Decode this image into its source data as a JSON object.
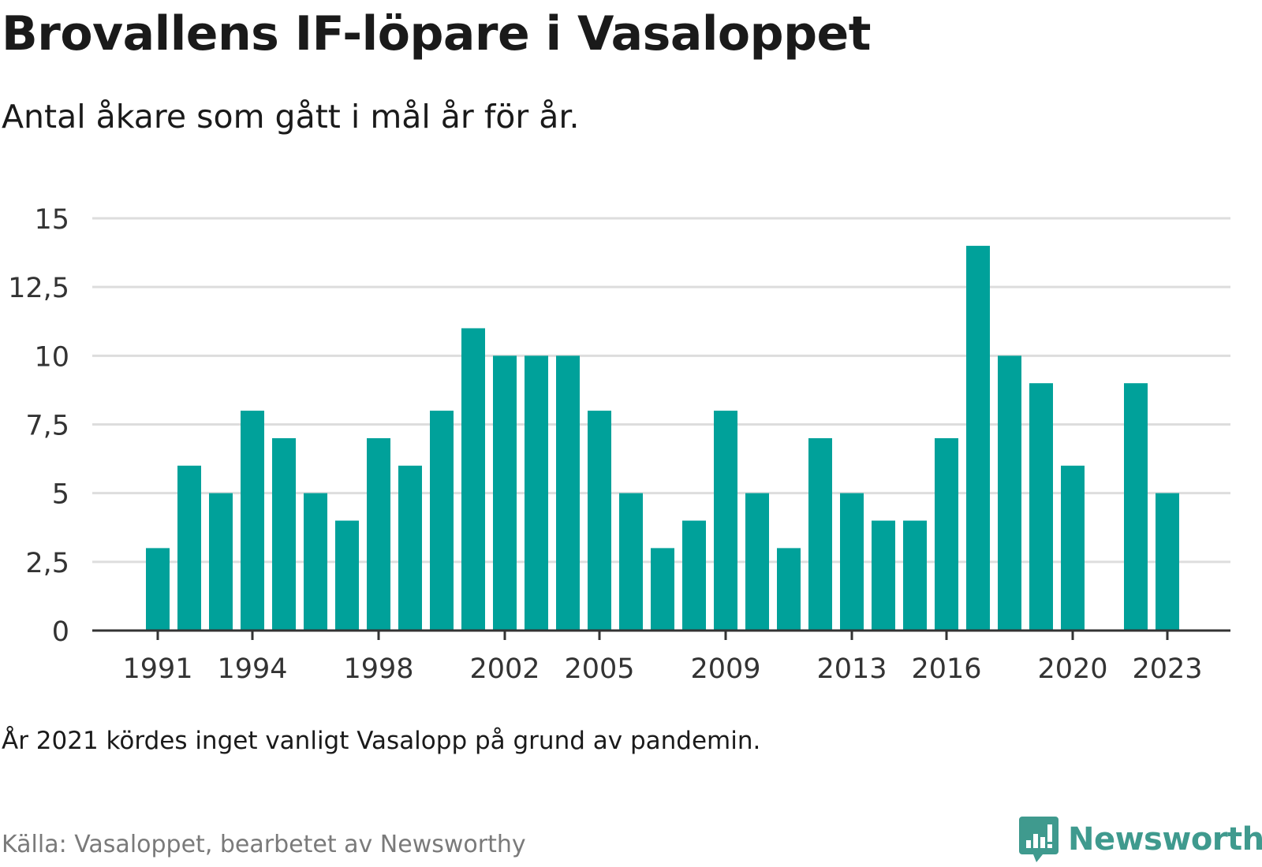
{
  "title": "Brovallens IF-löpare i Vasaloppet",
  "subtitle": "Antal åkare som gått i mål år för år.",
  "note": "År 2021 kördes inget vanligt Vasalopp på grund av pandemin.",
  "source": "Källa: Vasaloppet, bearbetet av Newsworthy",
  "brand": {
    "name": "Newsworthy",
    "logo_icon": "chart-speech-bubble-icon",
    "color": "#3f9a8e"
  },
  "colors": {
    "bar": "#00a19a",
    "grid": "#dddddd",
    "axis": "#333333",
    "tick_text": "#333333"
  },
  "chart_data": {
    "type": "bar",
    "title": "Brovallens IF-löpare i Vasaloppet",
    "subtitle": "Antal åkare som gått i mål år för år.",
    "xlabel": "",
    "ylabel": "",
    "ylim": [
      0,
      15
    ],
    "grid": true,
    "y_ticks": [
      0,
      2.5,
      5,
      7.5,
      10,
      12.5,
      15
    ],
    "y_tick_labels": [
      "0",
      "2,5",
      "5",
      "7,5",
      "10",
      "12,5",
      "15"
    ],
    "x_tick_labels": [
      "1991",
      "1994",
      "1998",
      "2002",
      "2005",
      "2009",
      "2013",
      "2016",
      "2020",
      "2023"
    ],
    "categories": [
      1991,
      1992,
      1993,
      1994,
      1995,
      1996,
      1997,
      1998,
      1999,
      2000,
      2001,
      2002,
      2003,
      2004,
      2005,
      2006,
      2007,
      2008,
      2009,
      2010,
      2011,
      2012,
      2013,
      2014,
      2015,
      2016,
      2017,
      2018,
      2019,
      2020,
      2021,
      2022,
      2023
    ],
    "values": [
      3,
      6,
      5,
      8,
      7,
      5,
      4,
      7,
      6,
      8,
      11,
      10,
      10,
      10,
      8,
      5,
      3,
      4,
      8,
      5,
      3,
      7,
      5,
      4,
      4,
      7,
      14,
      10,
      9,
      6,
      null,
      9,
      5
    ]
  }
}
